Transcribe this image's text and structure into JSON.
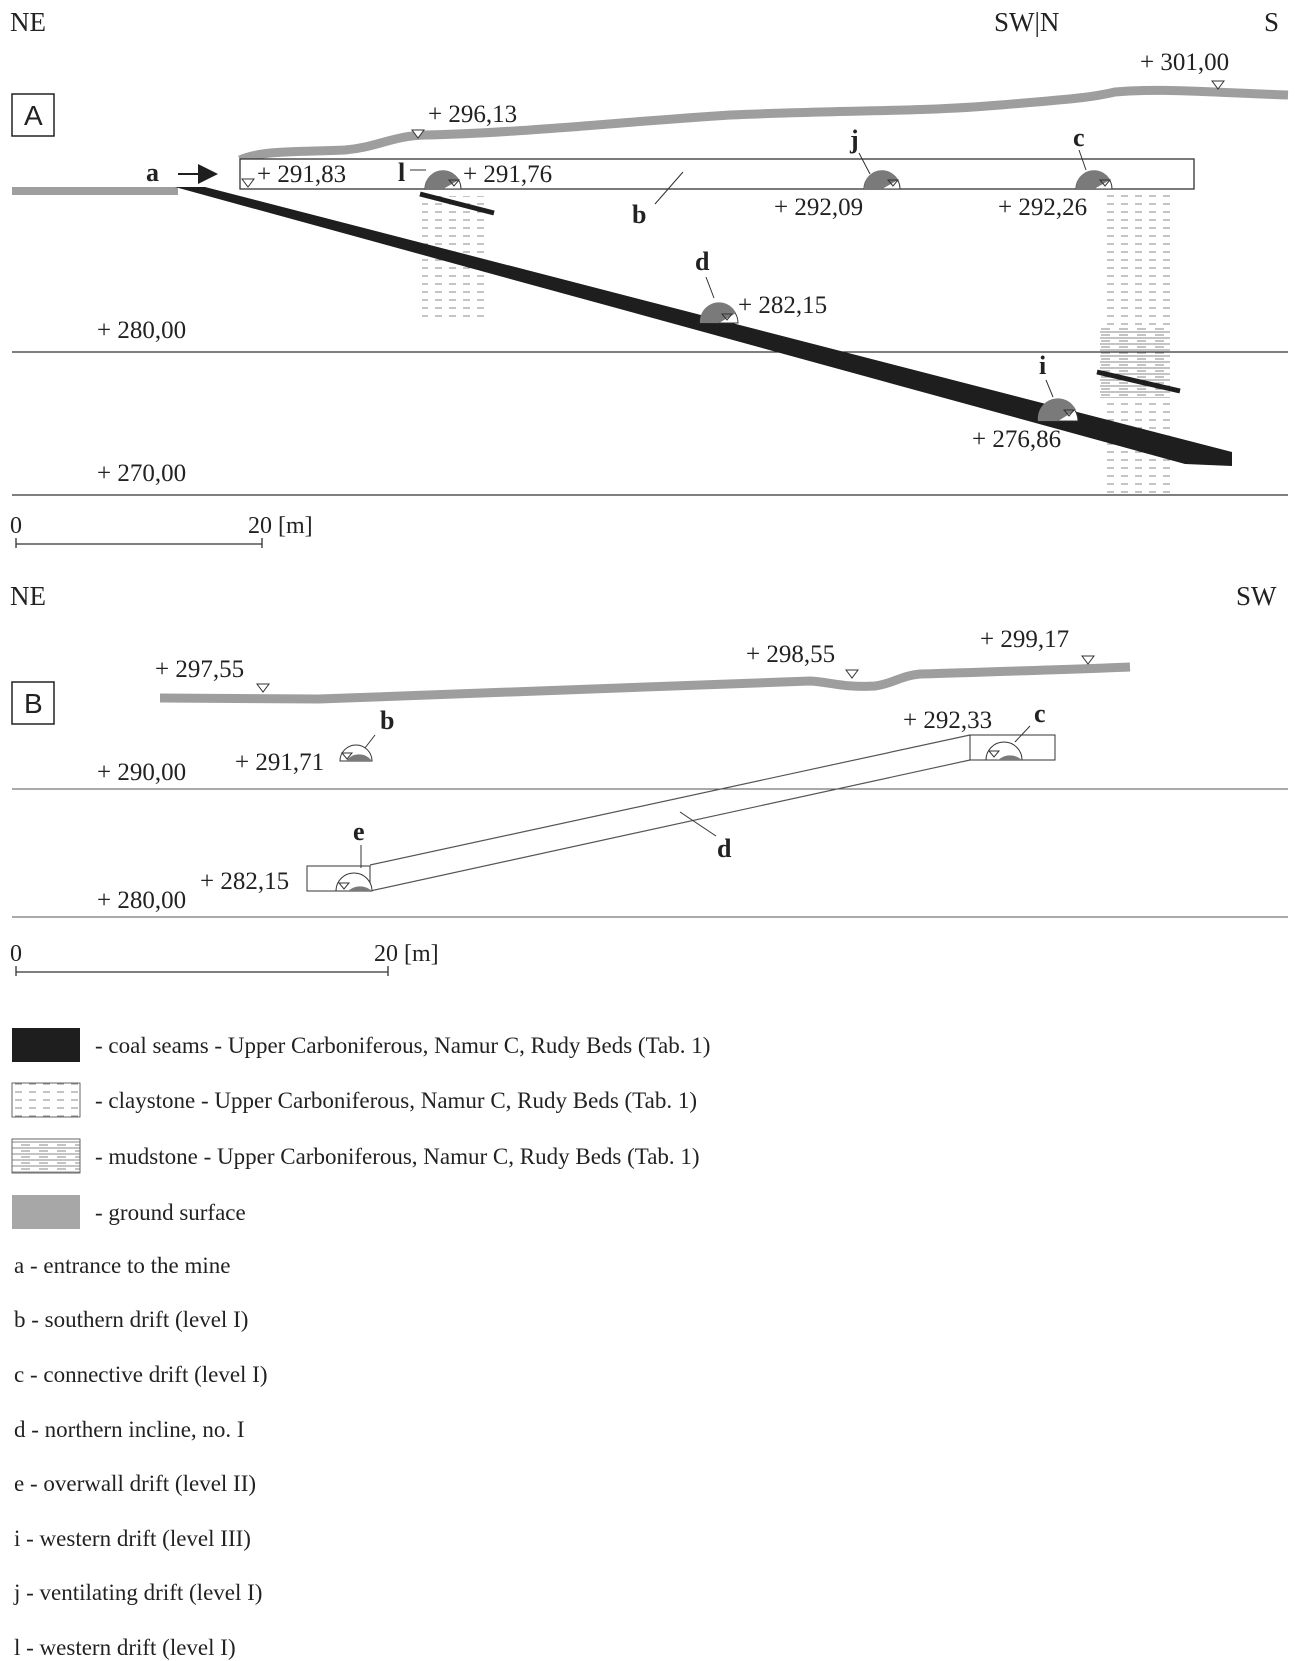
{
  "colors": {
    "coal": "#1e1e1e",
    "ground": "#9e9e9e",
    "gallery_fill": "#7a7a7a",
    "ink": "#222222",
    "hatch": "#8a8a8a"
  },
  "panel_a": {
    "id": "A",
    "orientation": {
      "left": "NE",
      "mid": "SW|N",
      "right": "S"
    },
    "elevations": {
      "e301": "+ 301,00",
      "e29613": "+ 296,13",
      "e29183": "+ 291,83",
      "e29176": "+ 291,76",
      "e29209": "+ 292,09",
      "e29226": "+ 292,26",
      "e28215": "+ 282,15",
      "e280": "+ 280,00",
      "e27686": "+ 276,86",
      "e270": "+ 270,00"
    },
    "labels": {
      "a": "a",
      "l": "l",
      "j": "j",
      "c": "c",
      "b": "b",
      "d": "d",
      "i": "i"
    },
    "scale": {
      "zero": "0",
      "end": "20 [m]"
    }
  },
  "panel_b": {
    "id": "B",
    "orientation": {
      "left": "NE",
      "right": "SW"
    },
    "elevations": {
      "e29755": "+ 297,55",
      "e29855": "+ 298,55",
      "e29917": "+ 299,17",
      "e29233": "+ 292,33",
      "e29171": "+ 291,71",
      "e290": "+ 290,00",
      "e28215": "+ 282,15",
      "e280": "+ 280,00"
    },
    "labels": {
      "b": "b",
      "c": "c",
      "d": "d",
      "e": "e"
    },
    "scale": {
      "zero": "0",
      "end": "20 [m]"
    }
  },
  "legend": {
    "symbols": [
      {
        "icon": "coal-seam-swatch-icon",
        "text": "- coal seams - Upper Carboniferous, Namur C, Rudy Beds (Tab. 1)"
      },
      {
        "icon": "claystone-swatch-icon",
        "text": "- claystone - Upper Carboniferous, Namur C, Rudy Beds (Tab. 1)"
      },
      {
        "icon": "mudstone-swatch-icon",
        "text": "- mudstone - Upper Carboniferous, Namur C, Rudy Beds (Tab. 1)"
      },
      {
        "icon": "ground-surface-swatch-icon",
        "text": "- ground surface"
      }
    ],
    "items": [
      "a - entrance to the mine",
      "b - southern drift (level I)",
      "c - connective drift (level I)",
      "d - northern incline, no. I",
      "e - overwall drift (level II)",
      "i - western drift (level III)",
      "j - ventilating drift (level I)",
      "l - western drift (level I)"
    ]
  }
}
